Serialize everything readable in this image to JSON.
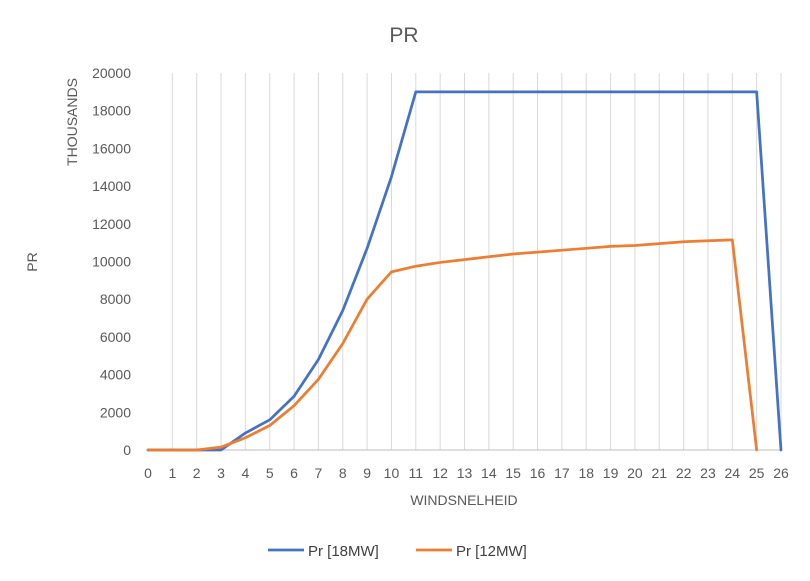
{
  "chart_data": {
    "type": "line",
    "title": "PR",
    "xlabel": "WINDSNELHEID",
    "ylabel": "PR",
    "y_units_label": "THOUSANDS",
    "categories": [
      0,
      1,
      2,
      3,
      4,
      5,
      6,
      7,
      8,
      9,
      10,
      11,
      12,
      13,
      14,
      15,
      16,
      17,
      18,
      19,
      20,
      21,
      22,
      23,
      24,
      25,
      26
    ],
    "ylim": [
      0,
      20000
    ],
    "yticks": [
      0,
      2000,
      4000,
      6000,
      8000,
      10000,
      12000,
      14000,
      16000,
      18000,
      20000
    ],
    "grid": "vertical",
    "legend_position": "bottom",
    "series": [
      {
        "name": "Pr [18MW]",
        "color": "#4472C4",
        "values": [
          0,
          0,
          0,
          0,
          900,
          1600,
          2850,
          4800,
          7400,
          10700,
          14500,
          19000,
          19000,
          19000,
          19000,
          19000,
          19000,
          19000,
          19000,
          19000,
          19000,
          19000,
          19000,
          19000,
          19000,
          19000,
          0
        ]
      },
      {
        "name": "Pr [12MW]",
        "color": "#ED7D31",
        "values": [
          0,
          0,
          0,
          150,
          650,
          1300,
          2350,
          3750,
          5650,
          8000,
          9450,
          9750,
          9950,
          10100,
          10250,
          10400,
          10500,
          10600,
          10700,
          10800,
          10850,
          10950,
          11050,
          11100,
          11150,
          0,
          null
        ]
      }
    ]
  }
}
